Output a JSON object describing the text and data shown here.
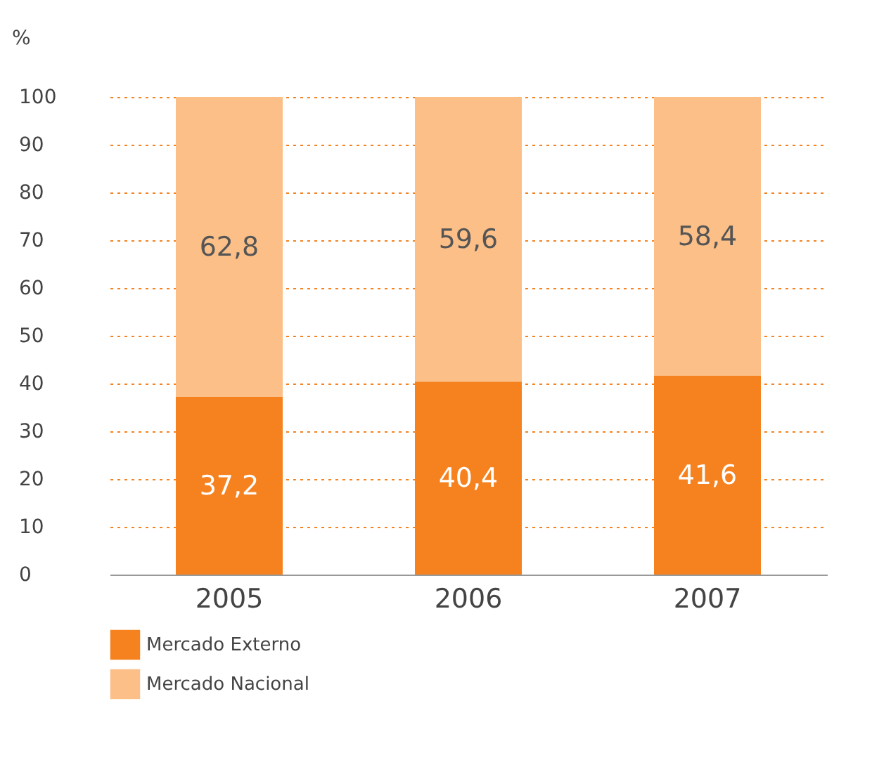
{
  "chart_data": {
    "type": "bar",
    "stacked": true,
    "ylabel": "%",
    "categories": [
      "2005",
      "2006",
      "2007"
    ],
    "series": [
      {
        "name": "Mercado Externo",
        "color": "#f5821f",
        "values": [
          37.2,
          40.4,
          41.6
        ],
        "value_labels": [
          "37,2",
          "40,4",
          "41,6"
        ]
      },
      {
        "name": "Mercado Nacional",
        "color": "#fbbf87",
        "values": [
          62.8,
          59.6,
          58.4
        ],
        "value_labels": [
          "62,8",
          "59,6",
          "58,4"
        ]
      }
    ],
    "ylim": [
      0,
      100
    ],
    "yticks": [
      0,
      10,
      20,
      30,
      40,
      50,
      60,
      70,
      80,
      90,
      100
    ],
    "grid": "y",
    "legend": "bottom left"
  }
}
